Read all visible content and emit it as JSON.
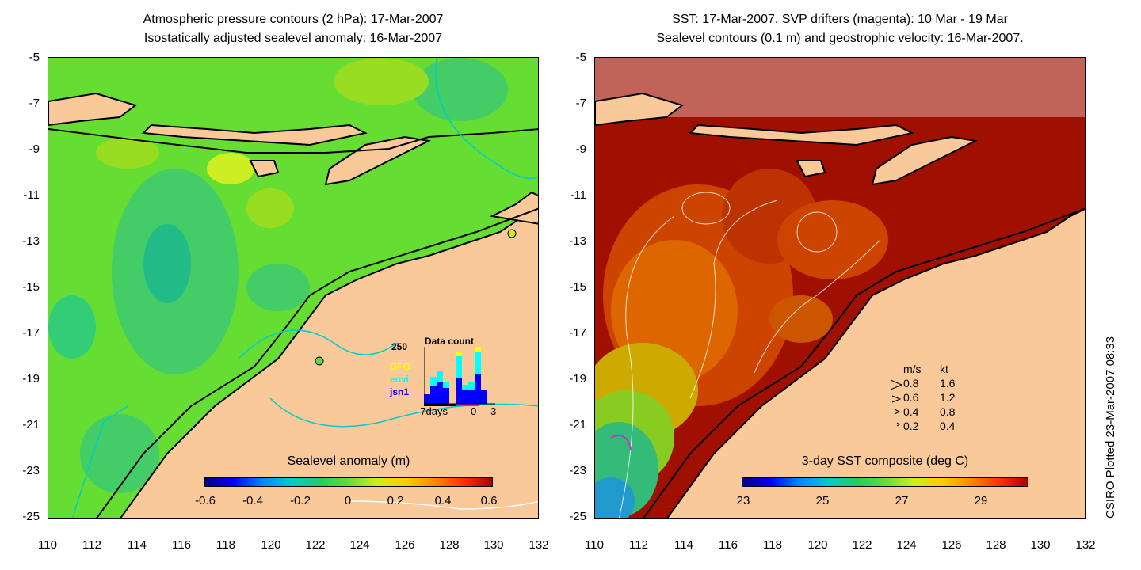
{
  "left_panel": {
    "title_line1": "Atmospheric pressure contours (2 hPa): 17-Mar-2007",
    "title_line2": "Isostatically adjusted sealevel anomaly: 16-Mar-2007",
    "colorbar_label": "Sealevel anomaly (m)",
    "colorbar_ticks": [
      "-0.6",
      "-0.4",
      "-0.2",
      "0",
      "0.2",
      "0.4",
      "0.6"
    ],
    "inset": {
      "title": "Data count",
      "y_max_label": "250",
      "x_labels": [
        "-7days",
        "0",
        "3"
      ],
      "satellites": [
        {
          "name": "GFO",
          "color": "#ffff00"
        },
        {
          "name": "envi",
          "color": "#00ffff"
        },
        {
          "name": "jsn1",
          "color": "#0000ff"
        }
      ]
    }
  },
  "right_panel": {
    "title_line1": "SST: 17-Mar-2007. SVP drifters (magenta): 10 Mar - 19 Mar",
    "title_line2": "Sealevel contours (0.1 m) and geostrophic velocity: 16-Mar-2007.",
    "colorbar_label": "3-day SST composite (deg C)",
    "colorbar_ticks": [
      "23",
      "25",
      "27",
      "29"
    ],
    "velocity_legend": {
      "header_ms": "m/s",
      "header_kt": "kt",
      "rows": [
        {
          "ms": "0.8",
          "kt": "1.6"
        },
        {
          "ms": "0.6",
          "kt": "1.2"
        },
        {
          "ms": "0.4",
          "kt": "0.8"
        },
        {
          "ms": "0.2",
          "kt": "0.4"
        }
      ]
    }
  },
  "axes": {
    "y_ticks": [
      "-5",
      "-7",
      "-9",
      "-11",
      "-13",
      "-15",
      "-17",
      "-19",
      "-21",
      "-23",
      "-25"
    ],
    "x_ticks": [
      "110",
      "112",
      "114",
      "116",
      "118",
      "120",
      "122",
      "124",
      "126",
      "128",
      "130",
      "132"
    ]
  },
  "credit": "CSIRO Plotted 23-Mar-2007 08:33",
  "colors": {
    "land": "#f9c99a",
    "sla_sea": "#66dd33",
    "sst_hot": "#a01000",
    "sst_cool": "#33bb77"
  }
}
